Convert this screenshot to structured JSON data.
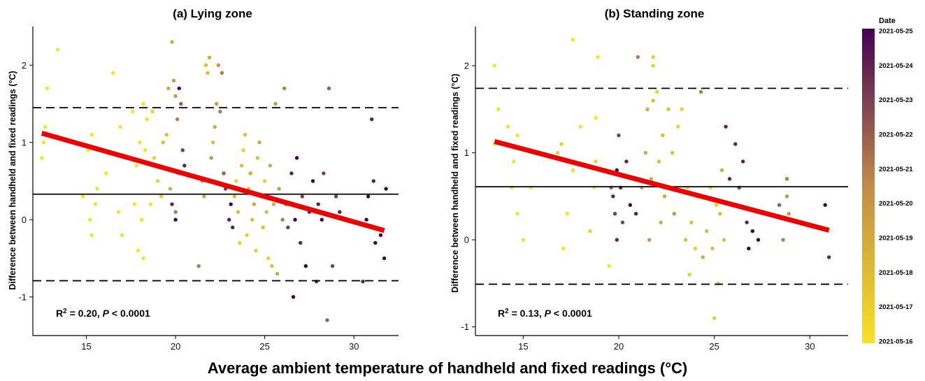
{
  "xlabel": "Average ambient temperature of handheld and fixed readings (°C)",
  "ylabel": "Difference between handheld and fixed readings (°C)",
  "colorbar": {
    "title": "Date",
    "labels": [
      "2021-05-25",
      "2021-05-24",
      "2021-05-23",
      "2021-05-22",
      "2021-05-21",
      "2021-05-20",
      "2021-05-19",
      "2021-05-18",
      "2021-05-17",
      "2021-05-16"
    ],
    "colors": {
      "low": "#f7e225",
      "mid": "#c38b4a",
      "high": "#440154"
    }
  },
  "panels": [
    {
      "title": "(a) Lying zone",
      "annotation": {
        "r2_prefix": "R",
        "r2_sup": "2",
        "r2_value": " = 0.20, ",
        "p_label": "P",
        "p_value": " < 0.0001"
      },
      "xlim": [
        12,
        32.5
      ],
      "ylim": [
        -1.5,
        2.5
      ],
      "xticks": [
        15,
        20,
        25,
        30
      ],
      "yticks": [
        -1,
        0,
        1,
        2
      ],
      "mean_line": 0.33,
      "loa_upper": 1.45,
      "loa_lower": -0.79,
      "regression": {
        "x": [
          12.5,
          31.7
        ],
        "y": [
          1.12,
          -0.14
        ]
      }
    },
    {
      "title": "(b) Standing zone",
      "annotation": {
        "r2_prefix": "R",
        "r2_sup": "2",
        "r2_value": " = 0.13, ",
        "p_label": "P",
        "p_value": " < 0.0001"
      },
      "xlim": [
        12.5,
        32
      ],
      "ylim": [
        -1.1,
        2.45
      ],
      "xticks": [
        15,
        20,
        25,
        30
      ],
      "yticks": [
        -1,
        0,
        1,
        2
      ],
      "mean_line": 0.61,
      "loa_upper": 1.74,
      "loa_lower": -0.51,
      "regression": {
        "x": [
          13.5,
          31.0
        ],
        "y": [
          1.13,
          0.11
        ]
      }
    }
  ],
  "chart_data": [
    {
      "type": "scatter",
      "title": "(a) Lying zone",
      "xlabel": "Average ambient temperature of handheld and fixed readings (°C)",
      "ylabel": "Difference between handheld and fixed readings (°C)",
      "xlim": [
        12,
        32.5
      ],
      "ylim": [
        -1.5,
        2.5
      ],
      "color_scale": "Date 2021-05-16 to 2021-05-25",
      "points": [
        [
          12.5,
          0.8,
          0
        ],
        [
          12.6,
          1.0,
          0
        ],
        [
          12.7,
          1.2,
          0
        ],
        [
          12.8,
          1.7,
          0
        ],
        [
          13.4,
          2.2,
          0
        ],
        [
          14.8,
          0.3,
          0
        ],
        [
          15.1,
          0.9,
          0
        ],
        [
          15.2,
          0.0,
          0
        ],
        [
          15.3,
          -0.2,
          0
        ],
        [
          15.3,
          1.1,
          0
        ],
        [
          15.5,
          0.2,
          0
        ],
        [
          15.6,
          0.4,
          0
        ],
        [
          16.1,
          0.6,
          0
        ],
        [
          16.5,
          1.9,
          0
        ],
        [
          16.8,
          0.1,
          0
        ],
        [
          16.9,
          1.2,
          0
        ],
        [
          17.0,
          -0.2,
          0
        ],
        [
          17.3,
          0.8,
          0
        ],
        [
          17.6,
          1.4,
          0
        ],
        [
          17.7,
          0.2,
          0
        ],
        [
          17.8,
          0.7,
          0
        ],
        [
          17.9,
          -0.4,
          0
        ],
        [
          18.0,
          1.0,
          0
        ],
        [
          18.1,
          0.0,
          0
        ],
        [
          18.2,
          1.5,
          0
        ],
        [
          18.2,
          -0.5,
          0
        ],
        [
          18.3,
          0.9,
          0
        ],
        [
          18.4,
          1.3,
          0
        ],
        [
          18.6,
          0.2,
          0
        ],
        [
          18.7,
          1.4,
          1
        ],
        [
          18.8,
          0.8,
          1
        ],
        [
          19.0,
          0.5,
          1
        ],
        [
          19.2,
          0.3,
          1
        ],
        [
          19.3,
          1.0,
          2
        ],
        [
          19.5,
          1.1,
          2
        ],
        [
          19.6,
          1.7,
          3
        ],
        [
          19.7,
          0.4,
          3
        ],
        [
          19.8,
          2.3,
          3
        ],
        [
          19.9,
          1.8,
          4
        ],
        [
          20.0,
          1.6,
          4
        ],
        [
          20.0,
          0.1,
          5
        ],
        [
          20.1,
          1.3,
          5
        ],
        [
          20.2,
          0.6,
          6
        ],
        [
          20.3,
          1.5,
          6
        ],
        [
          20.4,
          0.9,
          7
        ],
        [
          19.8,
          0.2,
          8
        ],
        [
          20.0,
          0.0,
          9
        ],
        [
          20.2,
          1.7,
          9
        ],
        [
          20.5,
          0.7,
          8
        ],
        [
          21.3,
          -0.6,
          5
        ],
        [
          21.5,
          0.5,
          4
        ],
        [
          21.6,
          0.3,
          3
        ],
        [
          21.7,
          2.0,
          2
        ],
        [
          21.8,
          1.9,
          2
        ],
        [
          21.9,
          2.1,
          3
        ],
        [
          22.0,
          0.8,
          4
        ],
        [
          22.1,
          1.0,
          2
        ],
        [
          22.2,
          1.2,
          3
        ],
        [
          22.3,
          1.5,
          4
        ],
        [
          22.4,
          2.0,
          4
        ],
        [
          22.5,
          1.4,
          5
        ],
        [
          22.6,
          1.9,
          5
        ],
        [
          22.7,
          0.6,
          6
        ],
        [
          22.8,
          0.4,
          7
        ],
        [
          23.0,
          0.0,
          8
        ],
        [
          23.1,
          0.2,
          9
        ],
        [
          23.2,
          -0.1,
          8
        ],
        [
          23.3,
          0.3,
          2
        ],
        [
          23.4,
          0.5,
          1
        ],
        [
          23.5,
          0.1,
          2
        ],
        [
          23.6,
          -0.3,
          1
        ],
        [
          23.7,
          0.7,
          2
        ],
        [
          23.8,
          0.9,
          1
        ],
        [
          23.9,
          1.1,
          2
        ],
        [
          24.0,
          -0.2,
          1
        ],
        [
          24.1,
          0.4,
          2
        ],
        [
          24.2,
          0.6,
          3
        ],
        [
          24.3,
          0.0,
          2
        ],
        [
          24.4,
          0.2,
          3
        ],
        [
          24.5,
          -0.4,
          1
        ],
        [
          24.6,
          0.8,
          2
        ],
        [
          24.7,
          1.0,
          3
        ],
        [
          24.8,
          0.3,
          3
        ],
        [
          24.9,
          -0.1,
          2
        ],
        [
          25.0,
          0.5,
          1
        ],
        [
          25.1,
          0.1,
          2
        ],
        [
          25.2,
          -0.5,
          1
        ],
        [
          25.3,
          0.7,
          3
        ],
        [
          25.4,
          -0.6,
          2
        ],
        [
          25.5,
          0.2,
          3
        ],
        [
          25.6,
          1.5,
          4
        ],
        [
          25.7,
          -0.7,
          3
        ],
        [
          25.8,
          0.4,
          4
        ],
        [
          26.0,
          0.0,
          5
        ],
        [
          26.1,
          1.7,
          5
        ],
        [
          26.2,
          0.2,
          6
        ],
        [
          26.3,
          -0.1,
          7
        ],
        [
          26.5,
          0.6,
          8
        ],
        [
          26.6,
          -1.0,
          9
        ],
        [
          26.7,
          0.0,
          9
        ],
        [
          26.8,
          0.8,
          9
        ],
        [
          27.0,
          -0.3,
          8
        ],
        [
          27.1,
          0.3,
          7
        ],
        [
          27.3,
          -0.6,
          9
        ],
        [
          27.5,
          0.1,
          8
        ],
        [
          27.7,
          0.5,
          9
        ],
        [
          27.9,
          -0.8,
          8
        ],
        [
          28.0,
          0.2,
          8
        ],
        [
          28.2,
          0.0,
          9
        ],
        [
          28.3,
          0.6,
          7
        ],
        [
          28.5,
          -1.3,
          6
        ],
        [
          28.6,
          1.7,
          6
        ],
        [
          28.8,
          -0.6,
          7
        ],
        [
          29.0,
          0.3,
          7
        ],
        [
          29.2,
          0.1,
          8
        ],
        [
          30.5,
          -0.8,
          8
        ],
        [
          30.7,
          0.0,
          9
        ],
        [
          30.8,
          0.3,
          9
        ],
        [
          31.0,
          1.3,
          8
        ],
        [
          31.1,
          0.5,
          8
        ],
        [
          31.2,
          -0.3,
          9
        ],
        [
          31.5,
          -0.2,
          9
        ],
        [
          31.7,
          -0.5,
          9
        ],
        [
          31.8,
          0.4,
          9
        ]
      ]
    },
    {
      "type": "scatter",
      "title": "(b) Standing zone",
      "xlabel": "Average ambient temperature of handheld and fixed readings (°C)",
      "ylabel": "Difference between handheld and fixed readings (°C)",
      "xlim": [
        12.5,
        32
      ],
      "ylim": [
        -1.1,
        2.45
      ],
      "color_scale": "Date 2021-05-16 to 2021-05-25",
      "points": [
        [
          13.5,
          1.1,
          0
        ],
        [
          13.5,
          2.0,
          0
        ],
        [
          13.7,
          1.5,
          0
        ],
        [
          14.2,
          1.3,
          0
        ],
        [
          14.4,
          0.6,
          0
        ],
        [
          14.5,
          0.9,
          0
        ],
        [
          14.7,
          1.2,
          0
        ],
        [
          14.7,
          0.3,
          0
        ],
        [
          15.0,
          0.0,
          0
        ],
        [
          15.4,
          0.6,
          0
        ],
        [
          16.8,
          1.0,
          1
        ],
        [
          17.0,
          1.1,
          1
        ],
        [
          17.1,
          -0.1,
          0
        ],
        [
          17.3,
          0.3,
          0
        ],
        [
          17.6,
          0.8,
          0
        ],
        [
          17.6,
          2.3,
          0
        ],
        [
          18.0,
          1.3,
          0
        ],
        [
          18.5,
          0.1,
          1
        ],
        [
          18.7,
          0.6,
          0
        ],
        [
          18.9,
          2.1,
          0
        ],
        [
          18.8,
          1.4,
          0
        ],
        [
          18.8,
          0.9,
          1
        ],
        [
          19.5,
          -0.3,
          0
        ],
        [
          19.6,
          0.6,
          6
        ],
        [
          19.7,
          0.5,
          8
        ],
        [
          19.8,
          0.3,
          7
        ],
        [
          19.9,
          0.8,
          9
        ],
        [
          19.9,
          0.0,
          8
        ],
        [
          20.0,
          1.2,
          7
        ],
        [
          20.1,
          0.6,
          8
        ],
        [
          20.2,
          0.2,
          7
        ],
        [
          20.4,
          0.9,
          8
        ],
        [
          20.6,
          0.4,
          9
        ],
        [
          20.9,
          0.3,
          8
        ],
        [
          21.0,
          2.1,
          5
        ],
        [
          21.2,
          0.6,
          4
        ],
        [
          21.4,
          1.0,
          3
        ],
        [
          21.5,
          1.5,
          3
        ],
        [
          21.6,
          0.0,
          4
        ],
        [
          21.7,
          0.7,
          3
        ],
        [
          21.8,
          1.6,
          2
        ],
        [
          21.8,
          2.1,
          1
        ],
        [
          21.8,
          2.0,
          1
        ],
        [
          22.0,
          1.7,
          1
        ],
        [
          22.1,
          0.9,
          2
        ],
        [
          22.2,
          0.2,
          3
        ],
        [
          22.3,
          1.2,
          2
        ],
        [
          22.4,
          0.5,
          3
        ],
        [
          22.6,
          1.5,
          2
        ],
        [
          22.8,
          1.0,
          2
        ],
        [
          22.9,
          0.3,
          4
        ],
        [
          23.1,
          1.3,
          1
        ],
        [
          23.3,
          1.5,
          1
        ],
        [
          23.5,
          0.0,
          2
        ],
        [
          23.6,
          0.6,
          1
        ],
        [
          23.7,
          -0.4,
          1
        ],
        [
          23.8,
          0.2,
          2
        ],
        [
          24.0,
          -0.1,
          1
        ],
        [
          24.1,
          0.5,
          2
        ],
        [
          24.3,
          1.7,
          5
        ],
        [
          24.4,
          -0.2,
          3
        ],
        [
          24.6,
          0.1,
          2
        ],
        [
          24.8,
          0.6,
          1
        ],
        [
          24.9,
          -0.1,
          2
        ],
        [
          25.0,
          -0.9,
          1
        ],
        [
          25.1,
          0.4,
          1
        ],
        [
          25.2,
          -0.5,
          1
        ],
        [
          25.3,
          0.3,
          2
        ],
        [
          25.4,
          0.8,
          3
        ],
        [
          25.5,
          0.0,
          2
        ],
        [
          25.6,
          1.3,
          8
        ],
        [
          25.8,
          0.7,
          8
        ],
        [
          26.0,
          0.4,
          9
        ],
        [
          26.1,
          1.1,
          8
        ],
        [
          26.3,
          0.6,
          7
        ],
        [
          26.5,
          0.9,
          8
        ],
        [
          26.7,
          0.2,
          8
        ],
        [
          26.8,
          -0.1,
          9
        ],
        [
          27.0,
          0.1,
          9
        ],
        [
          27.3,
          0.0,
          9
        ],
        [
          28.6,
          0.0,
          5
        ],
        [
          28.8,
          0.5,
          4
        ],
        [
          28.9,
          0.3,
          4
        ],
        [
          28.8,
          0.7,
          5
        ],
        [
          28.4,
          0.4,
          6
        ],
        [
          30.8,
          0.4,
          9
        ],
        [
          31.0,
          -0.2,
          8
        ]
      ]
    }
  ]
}
